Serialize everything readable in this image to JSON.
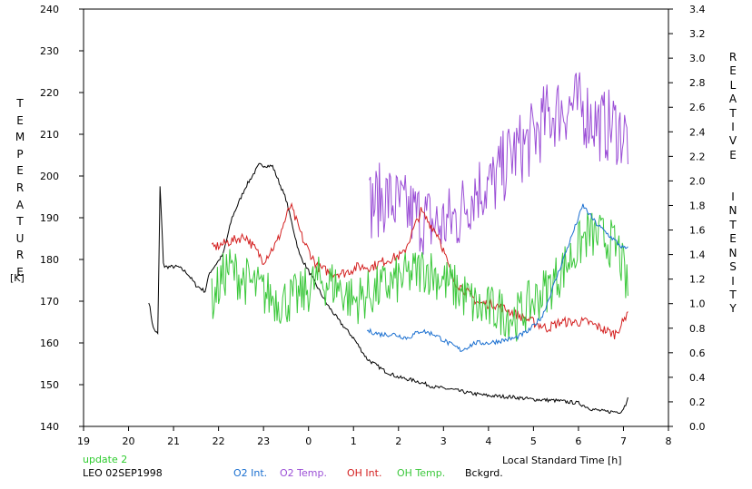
{
  "chart_data": {
    "type": "line",
    "x_axis": {
      "label": "Local Standard Time [h]",
      "tick_labels": [
        "19",
        "20",
        "21",
        "22",
        "23",
        "0",
        "1",
        "2",
        "3",
        "4",
        "5",
        "6",
        "7",
        "8"
      ],
      "range": [
        19,
        32
      ]
    },
    "y_left": {
      "label_letters": "TEMPERATURE",
      "unit": "[K]",
      "range": [
        140,
        240
      ],
      "ticks": [
        140,
        150,
        160,
        170,
        180,
        190,
        200,
        210,
        220,
        230,
        240
      ]
    },
    "y_right": {
      "label_letters": "RELATIVE  INTENSITY",
      "range": [
        0.0,
        3.4
      ],
      "ticks": [
        "0.0",
        "0.2",
        "0.4",
        "0.6",
        "0.8",
        "1.0",
        "1.2",
        "1.4",
        "1.6",
        "1.8",
        "2.0",
        "2.2",
        "2.4",
        "2.6",
        "2.8",
        "3.0",
        "3.2",
        "3.4"
      ]
    },
    "footer": {
      "update": "update 2",
      "station": "LEO 02SEP1998"
    },
    "legend": [
      "O2 Int.",
      "O2 Temp.",
      "OH Int.",
      "OH Temp.",
      "Bckgrd."
    ],
    "colors": {
      "O2 Int.": "#1a6fd0",
      "O2 Temp.": "#9b4fd6",
      "OH Int.": "#d42020",
      "OH Temp.": "#3cc83c",
      "Bckgrd.": "#000000",
      "update": "#2ecc2e",
      "axis": "#000000"
    },
    "series": [
      {
        "name": "Bckgrd.",
        "axis": "right",
        "noise": 0.015,
        "x": [
          20.45,
          20.55,
          20.65,
          20.7,
          20.78,
          20.9,
          21.1,
          21.3,
          21.5,
          21.7,
          21.8,
          21.9,
          22.1,
          22.3,
          22.6,
          22.9,
          23.2,
          23.5,
          23.8,
          24.1,
          24.4,
          24.7,
          25.0,
          25.3,
          25.7,
          26.0,
          26.4,
          26.8,
          27.2,
          27.6,
          28.0,
          28.5,
          29.0,
          29.5,
          30.0,
          30.3,
          30.6,
          30.8,
          30.95,
          31.05,
          31.12
        ],
        "y": [
          1.02,
          0.8,
          0.75,
          1.95,
          1.3,
          1.3,
          1.3,
          1.25,
          1.15,
          1.1,
          1.25,
          1.3,
          1.4,
          1.7,
          1.95,
          2.13,
          2.12,
          1.85,
          1.4,
          1.2,
          1.0,
          0.85,
          0.72,
          0.55,
          0.45,
          0.4,
          0.37,
          0.32,
          0.3,
          0.27,
          0.25,
          0.24,
          0.22,
          0.21,
          0.19,
          0.14,
          0.12,
          0.12,
          0.12,
          0.18,
          0.28
        ]
      },
      {
        "name": "O2 Temp.",
        "axis": "left",
        "noise": 9,
        "x": [
          25.35,
          25.7,
          26.1,
          26.5,
          26.9,
          27.3,
          27.7,
          28.1,
          28.5,
          28.9,
          29.3,
          29.6,
          29.9,
          30.2,
          30.5,
          30.8,
          31.1
        ],
        "y": [
          193,
          195,
          192,
          190,
          188,
          190,
          197,
          198,
          205,
          208,
          214,
          216,
          217,
          215,
          212,
          212,
          209
        ]
      },
      {
        "name": "OH Int.",
        "axis": "right",
        "noise": 0.04,
        "x": [
          21.85,
          22.2,
          22.6,
          23.0,
          23.3,
          23.6,
          23.9,
          24.2,
          24.5,
          24.8,
          25.1,
          25.4,
          25.7,
          26.1,
          26.5,
          26.9,
          27.2,
          27.5,
          27.8,
          28.1,
          28.4,
          28.7,
          29.0,
          29.3,
          29.6,
          29.9,
          30.2,
          30.5,
          30.8,
          31.0,
          31.12
        ],
        "y": [
          1.45,
          1.5,
          1.55,
          1.35,
          1.5,
          1.8,
          1.5,
          1.3,
          1.25,
          1.25,
          1.3,
          1.3,
          1.35,
          1.4,
          1.75,
          1.55,
          1.2,
          1.1,
          1.0,
          1.0,
          0.95,
          0.9,
          0.85,
          0.8,
          0.85,
          0.85,
          0.85,
          0.8,
          0.75,
          0.85,
          0.98
        ]
      },
      {
        "name": "OH Temp.",
        "axis": "left",
        "noise": 6,
        "x": [
          21.85,
          22.2,
          22.6,
          23.0,
          23.4,
          23.8,
          24.2,
          24.6,
          25.0,
          25.4,
          25.8,
          26.2,
          26.6,
          27.0,
          27.4,
          27.8,
          28.2,
          28.6,
          29.0,
          29.4,
          29.8,
          30.2,
          30.6,
          30.9,
          31.1
        ],
        "y": [
          170,
          178,
          175,
          172,
          170,
          171,
          175,
          174,
          170,
          172,
          174,
          176,
          178,
          175,
          172,
          168,
          168,
          166,
          170,
          174,
          180,
          186,
          185,
          182,
          172
        ]
      },
      {
        "name": "O2 Int.",
        "axis": "right",
        "noise": 0.02,
        "x": [
          25.3,
          25.6,
          25.9,
          26.2,
          26.5,
          26.8,
          27.1,
          27.4,
          27.7,
          28.0,
          28.3,
          28.6,
          28.9,
          29.2,
          29.5,
          29.8,
          30.1,
          30.4,
          30.7,
          31.0,
          31.12
        ],
        "y": [
          0.78,
          0.75,
          0.75,
          0.72,
          0.78,
          0.75,
          0.68,
          0.62,
          0.68,
          0.68,
          0.7,
          0.72,
          0.78,
          0.9,
          1.2,
          1.5,
          1.8,
          1.65,
          1.55,
          1.45,
          1.45
        ]
      }
    ]
  }
}
